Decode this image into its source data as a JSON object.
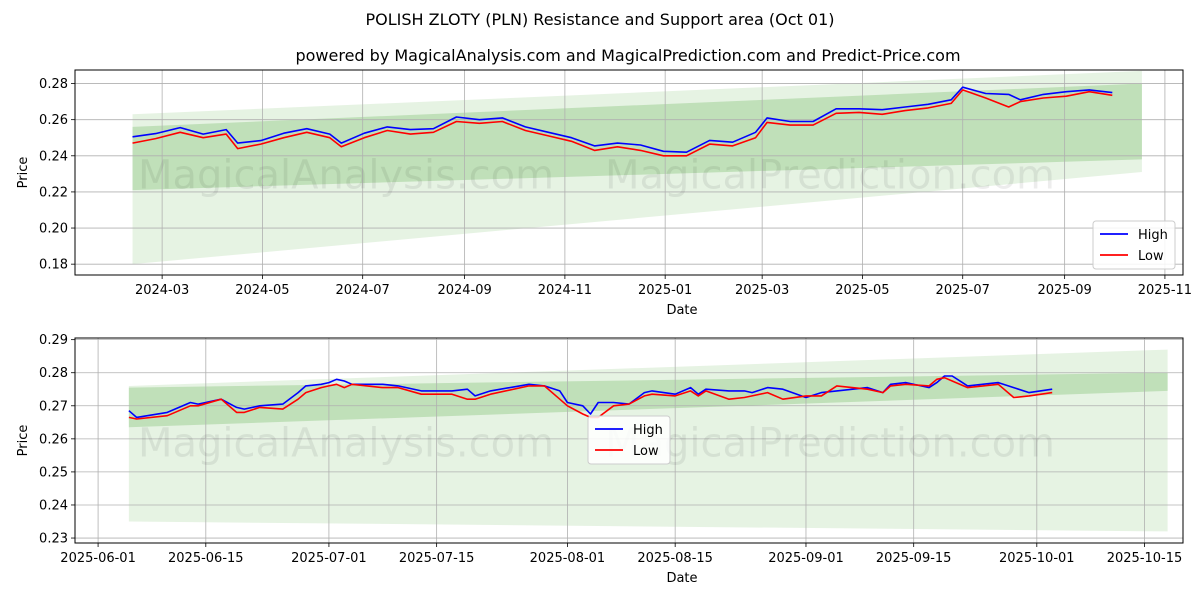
{
  "title": "POLISH ZLOTY (PLN) Resistance and Support area (Oct 01)",
  "subtitle": "powered by MagicalAnalysis.com and MagicalPrediction.com and Predict-Price.com",
  "watermark": {
    "left": "MagicalAnalysis.com",
    "right": "MagicalPrediction.com"
  },
  "colors": {
    "high": "#0000ff",
    "low": "#ff0000",
    "band_light": "#d8ecd4",
    "band_dark": "#b3d9ab",
    "grid": "#b0b0b0"
  },
  "chart_data": [
    {
      "type": "line",
      "xlabel": "Date",
      "ylabel": "Price",
      "x_ticks": [
        "2024-03",
        "2024-05",
        "2024-07",
        "2024-09",
        "2024-11",
        "2025-01",
        "2025-03",
        "2025-05",
        "2025-07",
        "2025-09",
        "2025-11"
      ],
      "y_ticks": [
        "0.18",
        "0.20",
        "0.22",
        "0.24",
        "0.26",
        "0.28"
      ],
      "xlim": [
        "2024-01-08",
        "2025-11-12"
      ],
      "ylim": [
        0.174,
        0.2875
      ],
      "grid": true,
      "legend": "lower right",
      "series": [
        {
          "name": "High",
          "points": [
            [
              "2024-02-12",
              0.2505
            ],
            [
              "2024-02-26",
              0.2523
            ],
            [
              "2024-03-12",
              0.2556
            ],
            [
              "2024-03-26",
              0.252
            ],
            [
              "2024-04-09",
              0.2545
            ],
            [
              "2024-04-16",
              0.247
            ],
            [
              "2024-04-30",
              0.2484
            ],
            [
              "2024-05-14",
              0.2525
            ],
            [
              "2024-05-28",
              0.255
            ],
            [
              "2024-06-11",
              0.252
            ],
            [
              "2024-06-18",
              0.247
            ],
            [
              "2024-07-02",
              0.2525
            ],
            [
              "2024-07-16",
              0.256
            ],
            [
              "2024-07-30",
              0.2545
            ],
            [
              "2024-08-13",
              0.255
            ],
            [
              "2024-08-27",
              0.2615
            ],
            [
              "2024-09-10",
              0.26
            ],
            [
              "2024-09-24",
              0.261
            ],
            [
              "2024-10-08",
              0.256
            ],
            [
              "2024-10-22",
              0.253
            ],
            [
              "2024-11-05",
              0.25
            ],
            [
              "2024-11-19",
              0.2455
            ],
            [
              "2024-12-03",
              0.247
            ],
            [
              "2024-12-17",
              0.246
            ],
            [
              "2024-12-31",
              0.2425
            ],
            [
              "2025-01-14",
              0.242
            ],
            [
              "2025-01-28",
              0.2485
            ],
            [
              "2025-02-11",
              0.2475
            ],
            [
              "2025-02-25",
              0.253
            ],
            [
              "2025-03-04",
              0.261
            ],
            [
              "2025-03-18",
              0.259
            ],
            [
              "2025-04-01",
              0.259
            ],
            [
              "2025-04-15",
              0.266
            ],
            [
              "2025-04-29",
              0.266
            ],
            [
              "2025-05-13",
              0.2655
            ],
            [
              "2025-05-27",
              0.267
            ],
            [
              "2025-06-10",
              0.2685
            ],
            [
              "2025-06-24",
              0.271
            ],
            [
              "2025-07-01",
              0.278
            ],
            [
              "2025-07-15",
              0.2745
            ],
            [
              "2025-07-29",
              0.274
            ],
            [
              "2025-08-05",
              0.271
            ],
            [
              "2025-08-19",
              0.274
            ],
            [
              "2025-09-02",
              0.2755
            ],
            [
              "2025-09-16",
              0.2765
            ],
            [
              "2025-09-30",
              0.275
            ]
          ]
        },
        {
          "name": "Low",
          "points": [
            [
              "2024-02-12",
              0.247
            ],
            [
              "2024-02-26",
              0.2495
            ],
            [
              "2024-03-12",
              0.253
            ],
            [
              "2024-03-26",
              0.25
            ],
            [
              "2024-04-09",
              0.252
            ],
            [
              "2024-04-16",
              0.244
            ],
            [
              "2024-04-30",
              0.2465
            ],
            [
              "2024-05-14",
              0.25
            ],
            [
              "2024-05-28",
              0.253
            ],
            [
              "2024-06-11",
              0.25
            ],
            [
              "2024-06-18",
              0.245
            ],
            [
              "2024-07-02",
              0.25
            ],
            [
              "2024-07-16",
              0.254
            ],
            [
              "2024-07-30",
              0.252
            ],
            [
              "2024-08-13",
              0.253
            ],
            [
              "2024-08-27",
              0.259
            ],
            [
              "2024-09-10",
              0.258
            ],
            [
              "2024-09-24",
              0.259
            ],
            [
              "2024-10-08",
              0.254
            ],
            [
              "2024-10-22",
              0.251
            ],
            [
              "2024-11-05",
              0.248
            ],
            [
              "2024-11-19",
              0.243
            ],
            [
              "2024-12-03",
              0.245
            ],
            [
              "2024-12-17",
              0.243
            ],
            [
              "2024-12-31",
              0.24
            ],
            [
              "2025-01-14",
              0.24
            ],
            [
              "2025-01-28",
              0.2465
            ],
            [
              "2025-02-11",
              0.2455
            ],
            [
              "2025-02-25",
              0.25
            ],
            [
              "2025-03-04",
              0.2585
            ],
            [
              "2025-03-18",
              0.257
            ],
            [
              "2025-04-01",
              0.257
            ],
            [
              "2025-04-15",
              0.2635
            ],
            [
              "2025-04-29",
              0.264
            ],
            [
              "2025-05-13",
              0.263
            ],
            [
              "2025-05-27",
              0.265
            ],
            [
              "2025-06-10",
              0.2665
            ],
            [
              "2025-06-24",
              0.269
            ],
            [
              "2025-07-01",
              0.2765
            ],
            [
              "2025-07-15",
              0.272
            ],
            [
              "2025-07-29",
              0.267
            ],
            [
              "2025-08-05",
              0.27
            ],
            [
              "2025-08-19",
              0.272
            ],
            [
              "2025-09-02",
              0.273
            ],
            [
              "2025-09-16",
              0.2755
            ],
            [
              "2025-09-30",
              0.2735
            ]
          ]
        }
      ],
      "bands": [
        {
          "x": [
            "2024-02-12",
            "2025-10-18"
          ],
          "upper": [
            0.263,
            0.287
          ],
          "lower": [
            0.18,
            0.231
          ],
          "shade": "light"
        },
        {
          "x": [
            "2024-02-12",
            "2025-10-18"
          ],
          "upper": [
            0.256,
            0.28
          ],
          "lower": [
            0.221,
            0.238
          ],
          "shade": "dark"
        }
      ]
    },
    {
      "type": "line",
      "xlabel": "Date",
      "ylabel": "Price",
      "x_ticks": [
        "2025-06-01",
        "2025-06-15",
        "2025-07-01",
        "2025-07-15",
        "2025-08-01",
        "2025-08-15",
        "2025-09-01",
        "2025-09-15",
        "2025-10-01",
        "2025-10-15"
      ],
      "y_ticks": [
        "0.23",
        "0.24",
        "0.25",
        "0.26",
        "0.27",
        "0.28",
        "0.29"
      ],
      "xlim": [
        "2025-05-29",
        "2025-10-20"
      ],
      "ylim": [
        0.2285,
        0.2905
      ],
      "grid": true,
      "legend": "center",
      "series": [
        {
          "name": "High",
          "points": [
            [
              "2025-06-05",
              0.2685
            ],
            [
              "2025-06-06",
              0.2665
            ],
            [
              "2025-06-10",
              0.268
            ],
            [
              "2025-06-13",
              0.271
            ],
            [
              "2025-06-14",
              0.2705
            ],
            [
              "2025-06-17",
              0.272
            ],
            [
              "2025-06-19",
              0.2695
            ],
            [
              "2025-06-20",
              0.269
            ],
            [
              "2025-06-22",
              0.27
            ],
            [
              "2025-06-25",
              0.2705
            ],
            [
              "2025-06-27",
              0.274
            ],
            [
              "2025-06-28",
              0.276
            ],
            [
              "2025-06-30",
              0.2765
            ],
            [
              "2025-07-01",
              0.277
            ],
            [
              "2025-07-02",
              0.278
            ],
            [
              "2025-07-03",
              0.2775
            ],
            [
              "2025-07-04",
              0.2765
            ],
            [
              "2025-07-08",
              0.2765
            ],
            [
              "2025-07-10",
              0.276
            ],
            [
              "2025-07-13",
              0.2745
            ],
            [
              "2025-07-17",
              0.2745
            ],
            [
              "2025-07-19",
              0.275
            ],
            [
              "2025-07-20",
              0.273
            ],
            [
              "2025-07-22",
              0.2745
            ],
            [
              "2025-07-27",
              0.2765
            ],
            [
              "2025-07-29",
              0.276
            ],
            [
              "2025-07-31",
              0.2745
            ],
            [
              "2025-08-01",
              0.271
            ],
            [
              "2025-08-03",
              0.27
            ],
            [
              "2025-08-04",
              0.2675
            ],
            [
              "2025-08-05",
              0.271
            ],
            [
              "2025-08-07",
              0.271
            ],
            [
              "2025-08-09",
              0.2705
            ],
            [
              "2025-08-11",
              0.274
            ],
            [
              "2025-08-12",
              0.2745
            ],
            [
              "2025-08-15",
              0.2735
            ],
            [
              "2025-08-17",
              0.2755
            ],
            [
              "2025-08-18",
              0.2735
            ],
            [
              "2025-08-19",
              0.275
            ],
            [
              "2025-08-22",
              0.2745
            ],
            [
              "2025-08-24",
              0.2745
            ],
            [
              "2025-08-25",
              0.274
            ],
            [
              "2025-08-27",
              0.2755
            ],
            [
              "2025-08-29",
              0.275
            ],
            [
              "2025-09-01",
              0.2725
            ],
            [
              "2025-09-03",
              0.274
            ],
            [
              "2025-09-05",
              0.2745
            ],
            [
              "2025-09-09",
              0.2755
            ],
            [
              "2025-09-11",
              0.274
            ],
            [
              "2025-09-12",
              0.2765
            ],
            [
              "2025-09-14",
              0.277
            ],
            [
              "2025-09-17",
              0.2755
            ],
            [
              "2025-09-18",
              0.277
            ],
            [
              "2025-09-19",
              0.279
            ],
            [
              "2025-09-20",
              0.279
            ],
            [
              "2025-09-22",
              0.276
            ],
            [
              "2025-09-26",
              0.277
            ],
            [
              "2025-09-28",
              0.2755
            ],
            [
              "2025-09-30",
              0.274
            ],
            [
              "2025-10-03",
              0.275
            ]
          ]
        },
        {
          "name": "Low",
          "points": [
            [
              "2025-06-05",
              0.2665
            ],
            [
              "2025-06-06",
              0.266
            ],
            [
              "2025-06-10",
              0.267
            ],
            [
              "2025-06-13",
              0.27
            ],
            [
              "2025-06-14",
              0.27
            ],
            [
              "2025-06-17",
              0.272
            ],
            [
              "2025-06-19",
              0.268
            ],
            [
              "2025-06-20",
              0.268
            ],
            [
              "2025-06-22",
              0.2695
            ],
            [
              "2025-06-25",
              0.269
            ],
            [
              "2025-06-27",
              0.272
            ],
            [
              "2025-06-28",
              0.274
            ],
            [
              "2025-06-30",
              0.2755
            ],
            [
              "2025-07-01",
              0.276
            ],
            [
              "2025-07-02",
              0.2765
            ],
            [
              "2025-07-03",
              0.2755
            ],
            [
              "2025-07-04",
              0.2765
            ],
            [
              "2025-07-08",
              0.2755
            ],
            [
              "2025-07-10",
              0.2755
            ],
            [
              "2025-07-13",
              0.2735
            ],
            [
              "2025-07-17",
              0.2735
            ],
            [
              "2025-07-19",
              0.272
            ],
            [
              "2025-07-20",
              0.272
            ],
            [
              "2025-07-22",
              0.2735
            ],
            [
              "2025-07-27",
              0.276
            ],
            [
              "2025-07-29",
              0.276
            ],
            [
              "2025-07-31",
              0.272
            ],
            [
              "2025-08-01",
              0.27
            ],
            [
              "2025-08-03",
              0.2675
            ],
            [
              "2025-08-04",
              0.2665
            ],
            [
              "2025-08-05",
              0.2665
            ],
            [
              "2025-08-07",
              0.27
            ],
            [
              "2025-08-09",
              0.2705
            ],
            [
              "2025-08-11",
              0.273
            ],
            [
              "2025-08-12",
              0.2735
            ],
            [
              "2025-08-15",
              0.273
            ],
            [
              "2025-08-17",
              0.2745
            ],
            [
              "2025-08-18",
              0.273
            ],
            [
              "2025-08-19",
              0.2745
            ],
            [
              "2025-08-22",
              0.272
            ],
            [
              "2025-08-24",
              0.2725
            ],
            [
              "2025-08-25",
              0.273
            ],
            [
              "2025-08-27",
              0.274
            ],
            [
              "2025-08-29",
              0.272
            ],
            [
              "2025-09-01",
              0.273
            ],
            [
              "2025-09-03",
              0.273
            ],
            [
              "2025-09-05",
              0.276
            ],
            [
              "2025-09-09",
              0.275
            ],
            [
              "2025-09-11",
              0.274
            ],
            [
              "2025-09-12",
              0.276
            ],
            [
              "2025-09-14",
              0.2765
            ],
            [
              "2025-09-17",
              0.276
            ],
            [
              "2025-09-18",
              0.278
            ],
            [
              "2025-09-19",
              0.2785
            ],
            [
              "2025-09-20",
              0.2775
            ],
            [
              "2025-09-22",
              0.2755
            ],
            [
              "2025-09-26",
              0.2765
            ],
            [
              "2025-09-28",
              0.2725
            ],
            [
              "2025-09-30",
              0.273
            ],
            [
              "2025-10-03",
              0.274
            ]
          ]
        }
      ],
      "bands": [
        {
          "x": [
            "2025-06-05",
            "2025-10-18"
          ],
          "upper": [
            0.276,
            0.287
          ],
          "lower": [
            0.235,
            0.232
          ],
          "shade": "light"
        },
        {
          "x": [
            "2025-06-05",
            "2025-10-18"
          ],
          "upper": [
            0.2755,
            0.28
          ],
          "lower": [
            0.2635,
            0.2745
          ],
          "shade": "dark"
        }
      ]
    }
  ]
}
